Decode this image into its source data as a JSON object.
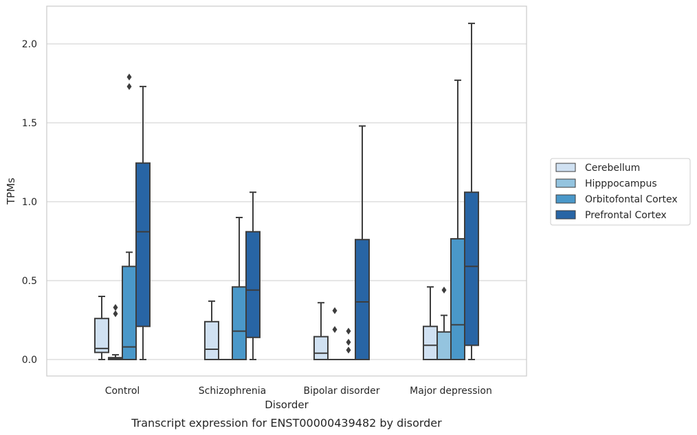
{
  "chart_data": {
    "type": "box",
    "xlabel": "Disorder",
    "ylabel": "TPMs",
    "caption": "Transcript expression for ENST00000439482 by disorder",
    "ylim": [
      -0.1,
      2.25
    ],
    "yticks": [
      0.0,
      0.5,
      1.0,
      1.5,
      2.0
    ],
    "ytick_labels": [
      "0.0",
      "0.5",
      "1.0",
      "1.5",
      "2.0"
    ],
    "grid": "horizontal",
    "legend_position": "right",
    "categories": [
      "Control",
      "Schizophrenia",
      "Bipolar disorder",
      "Major depression"
    ],
    "series": [
      {
        "name": "Cerebellum",
        "color": "#d0e1f2",
        "boxes": [
          {
            "whisker_low": 0.0,
            "q1": 0.045,
            "median": 0.07,
            "q3": 0.26,
            "whisker_high": 0.4,
            "outliers": []
          },
          {
            "whisker_low": 0.0,
            "q1": 0.0,
            "median": 0.065,
            "q3": 0.24,
            "whisker_high": 0.37,
            "outliers": []
          },
          {
            "whisker_low": 0.0,
            "q1": 0.0,
            "median": 0.04,
            "q3": 0.145,
            "whisker_high": 0.36,
            "outliers": []
          },
          {
            "whisker_low": 0.0,
            "q1": 0.0,
            "median": 0.09,
            "q3": 0.21,
            "whisker_high": 0.46,
            "outliers": []
          }
        ]
      },
      {
        "name": "Hipppocampus",
        "color": "#94c4df",
        "boxes": [
          {
            "whisker_low": 0.0,
            "q1": 0.0,
            "median": 0.005,
            "q3": 0.012,
            "whisker_high": 0.03,
            "outliers": [
              0.29,
              0.33
            ]
          },
          {
            "whisker_low": 0.0,
            "q1": 0.0,
            "median": 0.0,
            "q3": 0.0,
            "whisker_high": 0.0,
            "outliers": []
          },
          {
            "whisker_low": 0.0,
            "q1": 0.0,
            "median": 0.0,
            "q3": 0.0,
            "whisker_high": 0.0,
            "outliers": [
              0.19,
              0.31
            ]
          },
          {
            "whisker_low": 0.0,
            "q1": 0.0,
            "median": 0.0,
            "q3": 0.175,
            "whisker_high": 0.28,
            "outliers": [
              0.44
            ]
          }
        ]
      },
      {
        "name": "Orbitofontal Cortex",
        "color": "#4a98c9",
        "boxes": [
          {
            "whisker_low": 0.0,
            "q1": 0.0,
            "median": 0.08,
            "q3": 0.59,
            "whisker_high": 0.68,
            "outliers": [
              1.73,
              1.79
            ]
          },
          {
            "whisker_low": 0.0,
            "q1": 0.0,
            "median": 0.18,
            "q3": 0.46,
            "whisker_high": 0.9,
            "outliers": []
          },
          {
            "whisker_low": 0.0,
            "q1": 0.0,
            "median": 0.0,
            "q3": 0.0,
            "whisker_high": 0.0,
            "outliers": [
              0.06,
              0.11,
              0.18
            ]
          },
          {
            "whisker_low": 0.0,
            "q1": 0.0,
            "median": 0.22,
            "q3": 0.765,
            "whisker_high": 1.77,
            "outliers": []
          }
        ]
      },
      {
        "name": "Prefrontal Cortex",
        "color": "#2865a5",
        "boxes": [
          {
            "whisker_low": 0.0,
            "q1": 0.21,
            "median": 0.81,
            "q3": 1.245,
            "whisker_high": 1.73,
            "outliers": []
          },
          {
            "whisker_low": 0.0,
            "q1": 0.14,
            "median": 0.44,
            "q3": 0.81,
            "whisker_high": 1.06,
            "outliers": []
          },
          {
            "whisker_low": 0.0,
            "q1": 0.0,
            "median": 0.365,
            "q3": 0.76,
            "whisker_high": 1.48,
            "outliers": []
          },
          {
            "whisker_low": 0.0,
            "q1": 0.09,
            "median": 0.59,
            "q3": 1.06,
            "whisker_high": 2.13,
            "outliers": []
          }
        ]
      }
    ]
  }
}
